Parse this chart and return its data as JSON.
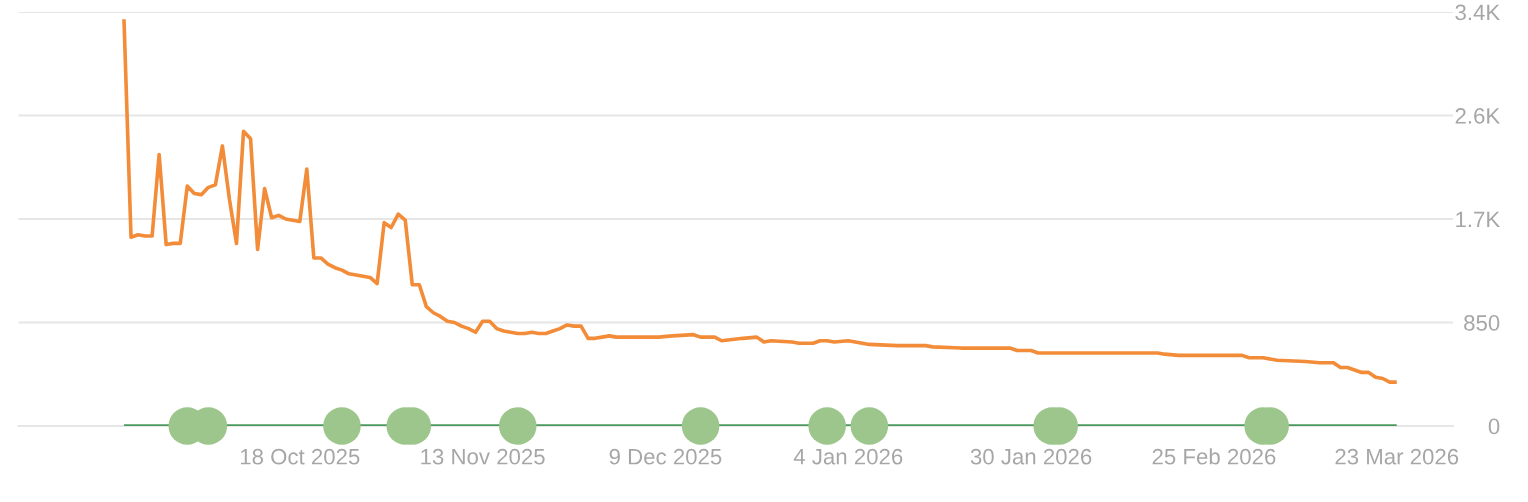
{
  "chart_data": {
    "type": "line",
    "series": [
      {
        "color": "#f28c38",
        "x": [
          "2025-09-23",
          "2025-09-24",
          "2025-09-25",
          "2025-09-26",
          "2025-09-27",
          "2025-09-28",
          "2025-09-29",
          "2025-09-30",
          "2025-10-01",
          "2025-10-02",
          "2025-10-03",
          "2025-10-04",
          "2025-10-05",
          "2025-10-06",
          "2025-10-07",
          "2025-10-08",
          "2025-10-09",
          "2025-10-10",
          "2025-10-11",
          "2025-10-12",
          "2025-10-13",
          "2025-10-14",
          "2025-10-15",
          "2025-10-16",
          "2025-10-17",
          "2025-10-18",
          "2025-10-19",
          "2025-10-20",
          "2025-10-21",
          "2025-10-22",
          "2025-10-23",
          "2025-10-24",
          "2025-10-25",
          "2025-10-26",
          "2025-10-27",
          "2025-10-28",
          "2025-10-29",
          "2025-10-30",
          "2025-10-31",
          "2025-11-01",
          "2025-11-02",
          "2025-11-03",
          "2025-11-04",
          "2025-11-05",
          "2025-11-06",
          "2025-11-07",
          "2025-11-08",
          "2025-11-09",
          "2025-11-10",
          "2025-11-11",
          "2025-11-12",
          "2025-11-13",
          "2025-11-14",
          "2025-11-15",
          "2025-11-16",
          "2025-11-17",
          "2025-11-18",
          "2025-11-19",
          "2025-11-20",
          "2025-11-21",
          "2025-11-22",
          "2025-11-23",
          "2025-11-24",
          "2025-11-25",
          "2025-11-26",
          "2025-11-27",
          "2025-11-28",
          "2025-11-29",
          "2025-11-30",
          "2025-12-01",
          "2025-12-02",
          "2025-12-05",
          "2025-12-08",
          "2025-12-10",
          "2025-12-13",
          "2025-12-14",
          "2025-12-16",
          "2025-12-17",
          "2025-12-20",
          "2025-12-22",
          "2025-12-23",
          "2025-12-24",
          "2025-12-27",
          "2025-12-28",
          "2025-12-30",
          "2025-12-31",
          "2026-01-01",
          "2026-01-02",
          "2026-01-04",
          "2026-01-05",
          "2026-01-07",
          "2026-01-11",
          "2026-01-15",
          "2026-01-16",
          "2026-01-20",
          "2026-01-27",
          "2026-01-28",
          "2026-01-30",
          "2026-01-31",
          "2026-02-05",
          "2026-02-17",
          "2026-02-18",
          "2026-02-20",
          "2026-02-22",
          "2026-03-01",
          "2026-03-02",
          "2026-03-04",
          "2026-03-06",
          "2026-03-10",
          "2026-03-12",
          "2026-03-14",
          "2026-03-15",
          "2026-03-16",
          "2026-03-17",
          "2026-03-18",
          "2026-03-19",
          "2026-03-20",
          "2026-03-21",
          "2026-03-22",
          "2026-03-23"
        ],
        "values": [
          3340,
          1550,
          1570,
          1560,
          1560,
          2230,
          1490,
          1500,
          1500,
          1970,
          1910,
          1900,
          1960,
          1980,
          2300,
          1860,
          1500,
          2420,
          2360,
          1450,
          1950,
          1710,
          1730,
          1700,
          1690,
          1680,
          2110,
          1380,
          1380,
          1330,
          1300,
          1280,
          1250,
          1240,
          1230,
          1220,
          1170,
          1670,
          1630,
          1740,
          1690,
          1160,
          1160,
          980,
          930,
          900,
          860,
          850,
          820,
          800,
          770,
          860,
          860,
          800,
          780,
          770,
          760,
          760,
          770,
          760,
          760,
          780,
          800,
          830,
          820,
          820,
          720,
          720,
          730,
          740,
          730,
          730,
          730,
          740,
          750,
          730,
          730,
          700,
          720,
          730,
          690,
          700,
          690,
          680,
          680,
          700,
          700,
          690,
          700,
          690,
          670,
          660,
          660,
          650,
          640,
          640,
          620,
          620,
          600,
          600,
          600,
          590,
          580,
          580,
          580,
          560,
          560,
          540,
          530,
          520,
          520,
          480,
          480,
          460,
          440,
          440,
          400,
          390,
          360,
          360
        ]
      },
      {
        "type": "line",
        "color": "#4a9a5e",
        "x": [
          "2025-09-23",
          "2026-03-23"
        ],
        "values": [
          0,
          0
        ]
      },
      {
        "type": "scatter",
        "color": "#9cc68b",
        "marker": "circle",
        "x": [
          "2025-10-02",
          "2025-10-05",
          "2025-10-24",
          "2025-11-02",
          "2025-11-03",
          "2025-11-18",
          "2025-12-14",
          "2026-01-01",
          "2026-01-07",
          "2026-02-02",
          "2026-02-03",
          "2026-03-04",
          "2026-03-05"
        ],
        "values": [
          0,
          0,
          0,
          0,
          0,
          0,
          0,
          0,
          0,
          0,
          0,
          0,
          0
        ]
      }
    ],
    "xlim": [
      "2025-09-08",
      "2026-03-31"
    ],
    "xticks": [
      {
        "value": "2025-10-18",
        "label": "18 Oct 2025"
      },
      {
        "value": "2025-11-13",
        "label": "13 Nov 2025"
      },
      {
        "value": "2025-12-09",
        "label": "9 Dec 2025"
      },
      {
        "value": "2026-01-04",
        "label": "4 Jan 2026"
      },
      {
        "value": "2026-01-30",
        "label": "30 Jan 2026"
      },
      {
        "value": "2026-02-25",
        "label": "25 Feb 2026"
      },
      {
        "value": "2026-03-23",
        "label": "23 Mar 2026"
      }
    ],
    "ylim": [
      0,
      3400
    ],
    "yticks": [
      0,
      850,
      {
        "value": 1700,
        "label": "1.7K"
      },
      {
        "value": 2550,
        "label": "2.6K"
      },
      {
        "value": 3400,
        "label": "3.4K"
      }
    ],
    "grid": "y"
  }
}
